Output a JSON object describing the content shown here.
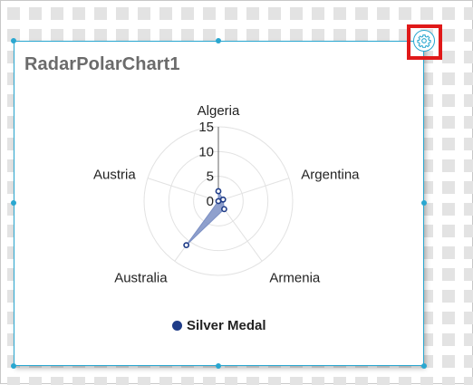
{
  "widget": {
    "title": "RadarPolarChart1",
    "settings_icon": "gear-icon"
  },
  "colors": {
    "selection": "#2aa7d0",
    "highlight": "#e01919",
    "series_fill": "#7b8fc4",
    "series_stroke": "#1f3c88",
    "grid": "#e2e2e2"
  },
  "chart_data": {
    "type": "radar",
    "categories": [
      "Algeria",
      "Argentina",
      "Armenia",
      "Australia",
      "Austria"
    ],
    "radial_ticks": [
      "0",
      "5",
      "10",
      "15"
    ],
    "rlim": [
      0,
      15
    ],
    "series": [
      {
        "name": "Silver Medal",
        "values": [
          2,
          1,
          2,
          11,
          0
        ]
      }
    ],
    "legend_position": "bottom",
    "grid": true
  }
}
